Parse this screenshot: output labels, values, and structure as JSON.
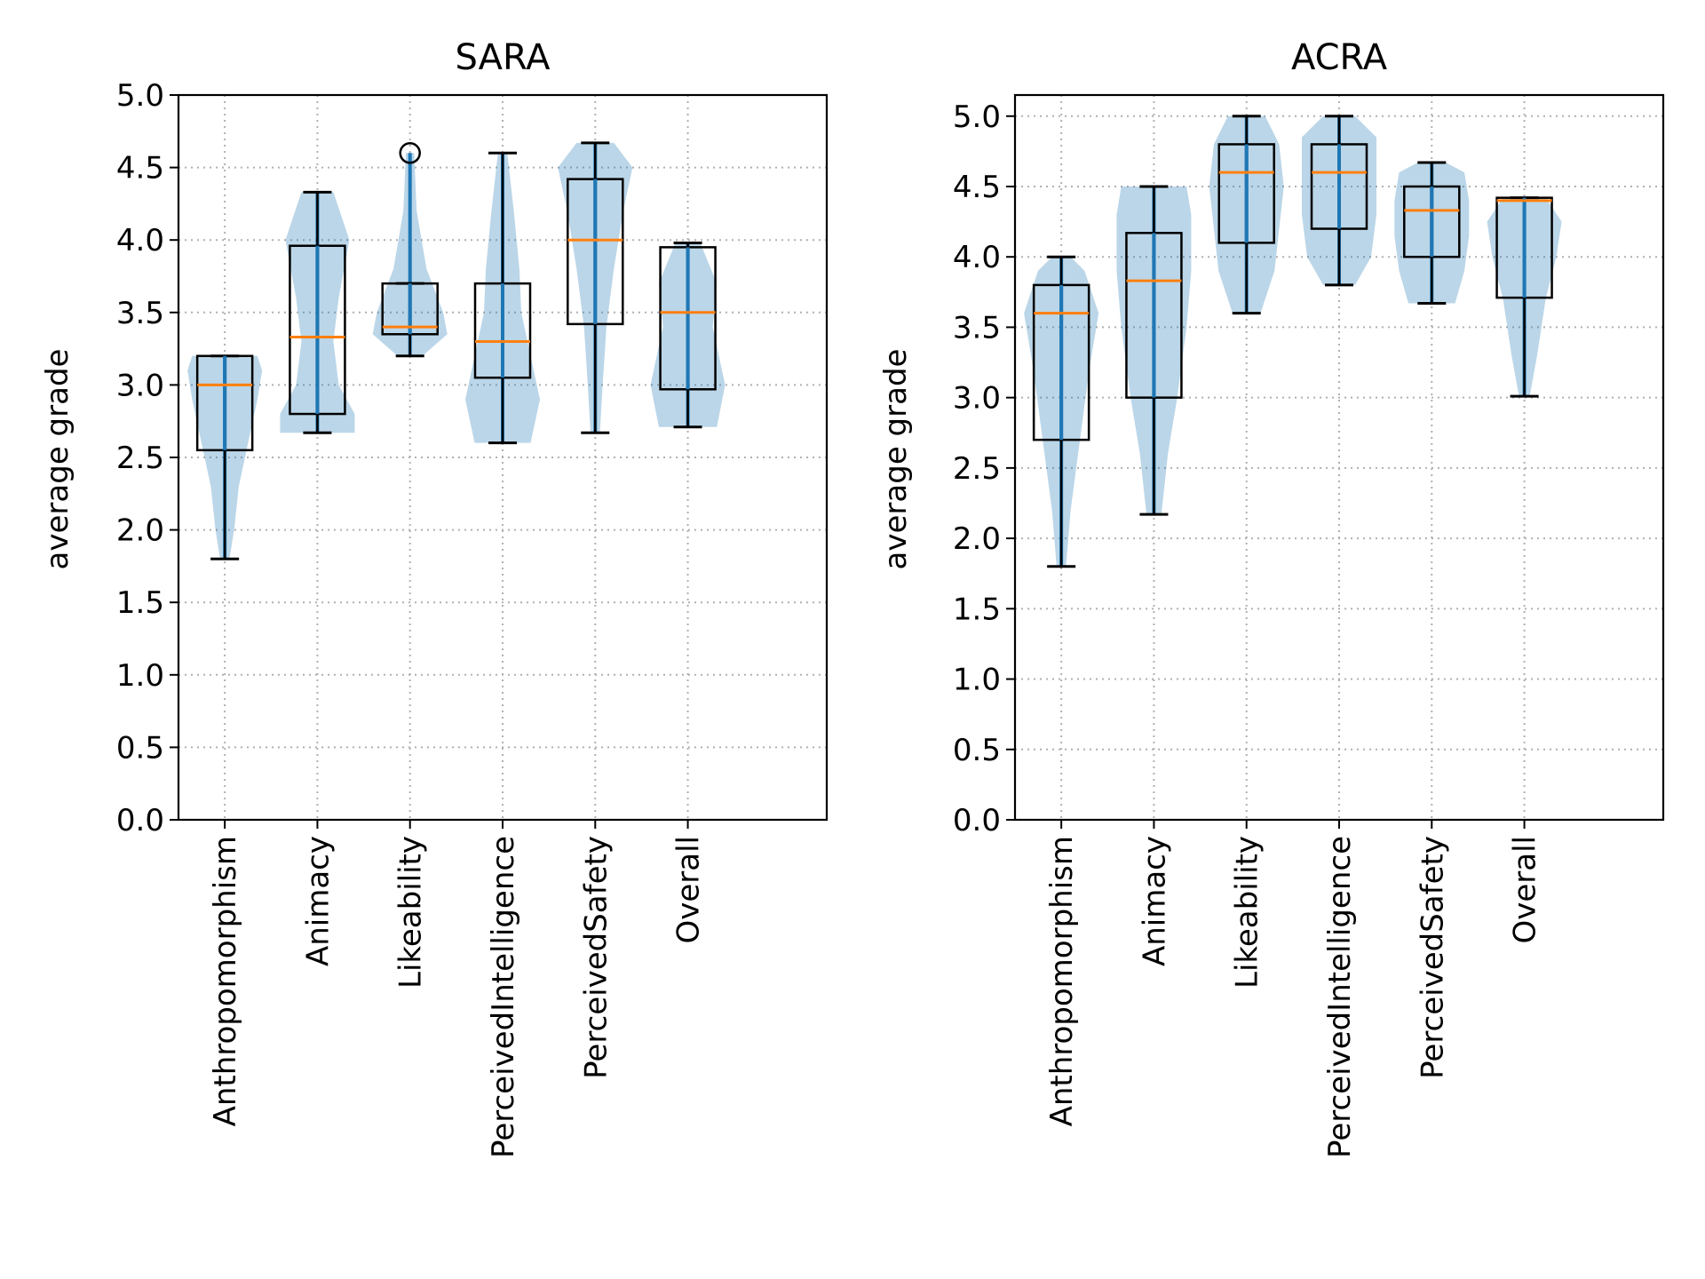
{
  "chart_data": [
    {
      "type": "box-violin",
      "title": "SARA",
      "ylabel": "average grade",
      "xlabel": "",
      "ylim": [
        0.0,
        5.0
      ],
      "yticks": [
        "0.0",
        "0.5",
        "1.0",
        "1.5",
        "2.0",
        "2.5",
        "3.0",
        "3.5",
        "4.0",
        "4.5",
        "5.0"
      ],
      "grid": true,
      "categories": [
        "Anthropomorphism",
        "Animacy",
        "Likeability",
        "PerceivedIntelligence",
        "PerceivedSafety",
        "Overall"
      ],
      "boxes": [
        {
          "min": 1.8,
          "q1": 2.55,
          "median": 3.0,
          "q3": 3.2,
          "max": 3.2,
          "outliers": []
        },
        {
          "min": 2.67,
          "q1": 2.8,
          "median": 3.33,
          "q3": 3.96,
          "max": 4.33,
          "outliers": []
        },
        {
          "min": 3.2,
          "q1": 3.35,
          "median": 3.4,
          "q3": 3.7,
          "max": 3.7,
          "outliers": [
            4.6
          ]
        },
        {
          "min": 2.6,
          "q1": 3.05,
          "median": 3.3,
          "q3": 3.7,
          "max": 4.6,
          "outliers": []
        },
        {
          "min": 2.67,
          "q1": 3.42,
          "median": 4.0,
          "q3": 4.42,
          "max": 4.67,
          "outliers": []
        },
        {
          "min": 2.71,
          "q1": 2.97,
          "median": 3.5,
          "q3": 3.95,
          "max": 3.98,
          "outliers": []
        }
      ],
      "violins": [
        [
          [
            1.8,
            0.05
          ],
          [
            2.0,
            0.1
          ],
          [
            2.3,
            0.15
          ],
          [
            2.6,
            0.25
          ],
          [
            2.9,
            0.35
          ],
          [
            3.1,
            0.4
          ],
          [
            3.2,
            0.35
          ]
        ],
        [
          [
            2.67,
            0.35
          ],
          [
            2.8,
            0.35
          ],
          [
            3.0,
            0.2
          ],
          [
            3.3,
            0.15
          ],
          [
            3.6,
            0.2
          ],
          [
            4.0,
            0.3
          ],
          [
            4.33,
            0.15
          ]
        ],
        [
          [
            3.2,
            0.15
          ],
          [
            3.35,
            0.45
          ],
          [
            3.5,
            0.4
          ],
          [
            3.8,
            0.2
          ],
          [
            4.2,
            0.08
          ],
          [
            4.6,
            0.05
          ]
        ],
        [
          [
            2.6,
            0.3
          ],
          [
            2.9,
            0.4
          ],
          [
            3.2,
            0.3
          ],
          [
            3.5,
            0.2
          ],
          [
            3.8,
            0.18
          ],
          [
            4.2,
            0.12
          ],
          [
            4.6,
            0.05
          ]
        ],
        [
          [
            2.67,
            0.05
          ],
          [
            3.0,
            0.08
          ],
          [
            3.4,
            0.12
          ],
          [
            3.8,
            0.2
          ],
          [
            4.2,
            0.3
          ],
          [
            4.5,
            0.4
          ],
          [
            4.67,
            0.2
          ]
        ],
        [
          [
            2.71,
            0.35
          ],
          [
            3.0,
            0.45
          ],
          [
            3.4,
            0.3
          ],
          [
            3.7,
            0.35
          ],
          [
            3.98,
            0.15
          ]
        ]
      ]
    },
    {
      "type": "box-violin",
      "title": "ACRA",
      "ylabel": "average grade",
      "xlabel": "",
      "ylim": [
        0.0,
        5.15
      ],
      "yticks": [
        "0.0",
        "0.5",
        "1.0",
        "1.5",
        "2.0",
        "2.5",
        "3.0",
        "3.5",
        "4.0",
        "4.5",
        "5.0"
      ],
      "grid": true,
      "categories": [
        "Anthropomorphism",
        "Animacy",
        "Likeability",
        "PerceivedIntelligence",
        "PerceivedSafety",
        "Overall"
      ],
      "boxes": [
        {
          "min": 1.8,
          "q1": 2.7,
          "median": 3.6,
          "q3": 3.8,
          "max": 4.0,
          "outliers": []
        },
        {
          "min": 2.17,
          "q1": 3.0,
          "median": 3.83,
          "q3": 4.17,
          "max": 4.5,
          "outliers": []
        },
        {
          "min": 3.6,
          "q1": 4.1,
          "median": 4.6,
          "q3": 4.8,
          "max": 5.0,
          "outliers": []
        },
        {
          "min": 3.8,
          "q1": 4.2,
          "median": 4.6,
          "q3": 4.8,
          "max": 5.0,
          "outliers": []
        },
        {
          "min": 3.67,
          "q1": 4.0,
          "median": 4.33,
          "q3": 4.5,
          "max": 4.67,
          "outliers": []
        },
        {
          "min": 3.01,
          "q1": 3.71,
          "median": 4.4,
          "q3": 4.42,
          "max": 4.42,
          "outliers": []
        }
      ],
      "violins": [
        [
          [
            1.8,
            0.05
          ],
          [
            2.2,
            0.1
          ],
          [
            2.7,
            0.2
          ],
          [
            3.2,
            0.3
          ],
          [
            3.6,
            0.4
          ],
          [
            3.9,
            0.25
          ],
          [
            4.0,
            0.1
          ]
        ],
        [
          [
            2.17,
            0.08
          ],
          [
            2.6,
            0.15
          ],
          [
            3.0,
            0.25
          ],
          [
            3.5,
            0.35
          ],
          [
            3.9,
            0.4
          ],
          [
            4.3,
            0.4
          ],
          [
            4.5,
            0.35
          ]
        ],
        [
          [
            3.6,
            0.15
          ],
          [
            3.9,
            0.3
          ],
          [
            4.2,
            0.35
          ],
          [
            4.5,
            0.4
          ],
          [
            4.8,
            0.35
          ],
          [
            5.0,
            0.2
          ]
        ],
        [
          [
            3.8,
            0.15
          ],
          [
            4.0,
            0.3
          ],
          [
            4.3,
            0.35
          ],
          [
            4.6,
            0.35
          ],
          [
            4.85,
            0.35
          ],
          [
            5.0,
            0.15
          ]
        ],
        [
          [
            3.67,
            0.25
          ],
          [
            3.9,
            0.35
          ],
          [
            4.15,
            0.4
          ],
          [
            4.4,
            0.4
          ],
          [
            4.6,
            0.35
          ],
          [
            4.67,
            0.15
          ]
        ],
        [
          [
            3.01,
            0.05
          ],
          [
            3.3,
            0.12
          ],
          [
            3.7,
            0.2
          ],
          [
            4.0,
            0.3
          ],
          [
            4.25,
            0.35
          ],
          [
            4.42,
            0.2
          ]
        ]
      ]
    }
  ]
}
